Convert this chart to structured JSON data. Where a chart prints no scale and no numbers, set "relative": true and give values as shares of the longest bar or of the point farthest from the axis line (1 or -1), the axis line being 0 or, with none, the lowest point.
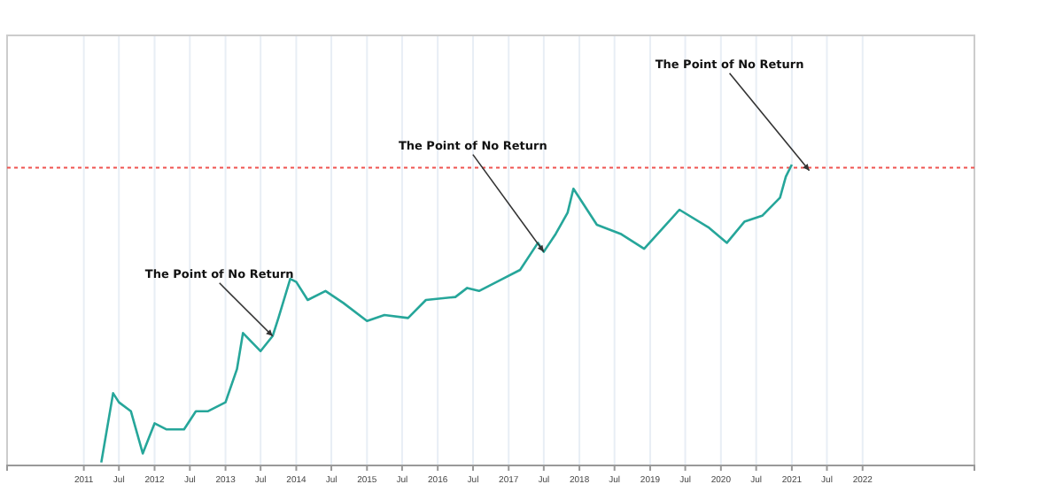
{
  "chart_data": {
    "type": "line",
    "relative": true,
    "grid": "x",
    "marker": "none",
    "line_style": "solid",
    "xlim": [
      "2009-12",
      "2023-08"
    ],
    "xticks": [
      {
        "value": "2011",
        "label": "2011"
      },
      {
        "value": "2011-07",
        "label": "Jul"
      },
      {
        "value": "2012",
        "label": "2012"
      },
      {
        "value": "2012-07",
        "label": "Jul"
      },
      {
        "value": "2013",
        "label": "2013"
      },
      {
        "value": "2013-07",
        "label": "Jul"
      },
      {
        "value": "2014",
        "label": "2014"
      },
      {
        "value": "2014-07",
        "label": "Jul"
      },
      {
        "value": "2015",
        "label": "2015"
      },
      {
        "value": "2015-07",
        "label": "Jul"
      },
      {
        "value": "2016",
        "label": "2016"
      },
      {
        "value": "2016-07",
        "label": "Jul"
      },
      {
        "value": "2017",
        "label": "2017"
      },
      {
        "value": "2017-07",
        "label": "Jul"
      },
      {
        "value": "2018",
        "label": "2018"
      },
      {
        "value": "2018-07",
        "label": "Jul"
      },
      {
        "value": "2019",
        "label": "2019"
      },
      {
        "value": "2019-07",
        "label": "Jul"
      },
      {
        "value": "2020",
        "label": "2020"
      },
      {
        "value": "2020-07",
        "label": "Jul"
      },
      {
        "value": "2021",
        "label": "2021"
      },
      {
        "value": "2021-07",
        "label": "Jul"
      },
      {
        "value": "2022",
        "label": "2022"
      }
    ],
    "x": [
      "2011-04",
      "2011-06",
      "2011-07",
      "2011-09",
      "2011-11",
      "2012-01",
      "2012-03",
      "2012-06",
      "2012-08",
      "2012-10",
      "2013-01",
      "2013-03",
      "2013-04",
      "2013-05",
      "2013-07",
      "2013-09",
      "2013-10",
      "2013-12",
      "2014-01",
      "2014-03",
      "2014-06",
      "2014-09",
      "2015-01",
      "2015-04",
      "2015-08",
      "2015-11",
      "2016-04",
      "2016-06",
      "2016-08",
      "2016-12",
      "2017-03",
      "2017-06",
      "2017-07",
      "2017-09",
      "2017-11",
      "2017-12",
      "2018-04",
      "2018-08",
      "2018-12",
      "2019-06",
      "2019-11",
      "2020-02",
      "2020-05",
      "2020-08",
      "2020-11",
      "2020-12",
      "2021-01"
    ],
    "series": [
      {
        "color": "#26a69a",
        "values": [
          0.01,
          0.24,
          0.21,
          0.18,
          0.04,
          0.14,
          0.12,
          0.12,
          0.18,
          0.18,
          0.21,
          0.32,
          0.44,
          0.42,
          0.38,
          0.43,
          0.49,
          0.62,
          0.61,
          0.55,
          0.58,
          0.54,
          0.48,
          0.5,
          0.49,
          0.55,
          0.56,
          0.59,
          0.58,
          0.62,
          0.65,
          0.74,
          0.71,
          0.77,
          0.84,
          0.92,
          0.8,
          0.77,
          0.72,
          0.85,
          0.79,
          0.74,
          0.81,
          0.83,
          0.89,
          0.96,
          1
        ]
      }
    ],
    "ref_lines": [
      {
        "axis": "y",
        "value": 0.99,
        "color": "#ef5350",
        "line_style": "dotted"
      }
    ],
    "annotations": [
      {
        "text": "The Point of No Return",
        "x": "2013-09",
        "y": 0.43
      },
      {
        "text": "The Point of No Return",
        "x": "2017-07",
        "y": 0.71
      },
      {
        "text": "The Point of No Return",
        "x": "2021-04",
        "y": 0.98
      }
    ]
  }
}
